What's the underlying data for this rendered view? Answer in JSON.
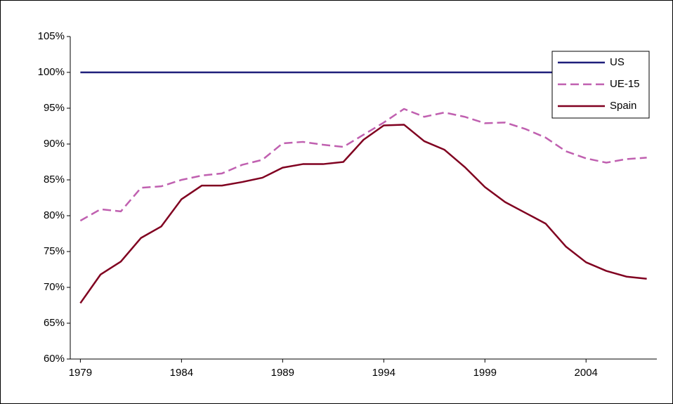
{
  "chart_data": {
    "type": "line",
    "x": [
      1979,
      1980,
      1981,
      1982,
      1983,
      1984,
      1985,
      1986,
      1987,
      1988,
      1989,
      1990,
      1991,
      1992,
      1993,
      1994,
      1995,
      1996,
      1997,
      1998,
      1999,
      2000,
      2001,
      2002,
      2003,
      2004,
      2005,
      2006,
      2007
    ],
    "series": [
      {
        "name": "US",
        "color": "#1f1f7a",
        "dash": false,
        "values": [
          100,
          100,
          100,
          100,
          100,
          100,
          100,
          100,
          100,
          100,
          100,
          100,
          100,
          100,
          100,
          100,
          100,
          100,
          100,
          100,
          100,
          100,
          100,
          100,
          100,
          100,
          100,
          100,
          100
        ]
      },
      {
        "name": "UE-15",
        "color": "#c060b0",
        "dash": true,
        "values": [
          79.3,
          80.9,
          80.6,
          83.9,
          84.1,
          85.0,
          85.6,
          85.9,
          87.1,
          87.8,
          90.1,
          90.3,
          89.9,
          89.6,
          91.3,
          93.0,
          94.9,
          93.8,
          94.4,
          93.8,
          92.9,
          93.0,
          92.1,
          90.9,
          89.0,
          88.0,
          87.4,
          87.9,
          88.1
        ]
      },
      {
        "name": "Spain",
        "color": "#800020",
        "dash": false,
        "values": [
          67.8,
          71.8,
          73.6,
          76.9,
          78.5,
          82.3,
          84.2,
          84.2,
          84.7,
          85.3,
          86.7,
          87.2,
          87.2,
          87.5,
          90.6,
          92.6,
          92.7,
          90.4,
          89.2,
          86.8,
          84.0,
          81.9,
          80.4,
          78.9,
          75.7,
          73.5,
          72.3,
          71.5,
          71.2
        ]
      }
    ],
    "xlim": [
      1978.5,
      2007.5
    ],
    "xticks": [
      1979,
      1984,
      1989,
      1994,
      1999,
      2004
    ],
    "ylim": [
      60,
      105
    ],
    "yticks": [
      {
        "value": 60,
        "label": "60%"
      },
      {
        "value": 65,
        "label": "65%"
      },
      {
        "value": 70,
        "label": "70%"
      },
      {
        "value": 75,
        "label": "75%"
      },
      {
        "value": 80,
        "label": "80%"
      },
      {
        "value": 85,
        "label": "85%"
      },
      {
        "value": 90,
        "label": "90%"
      },
      {
        "value": 95,
        "label": "95%"
      },
      {
        "value": 100,
        "label": "100%"
      },
      {
        "value": 105,
        "label": "105%"
      }
    ],
    "legend": "top-right"
  }
}
